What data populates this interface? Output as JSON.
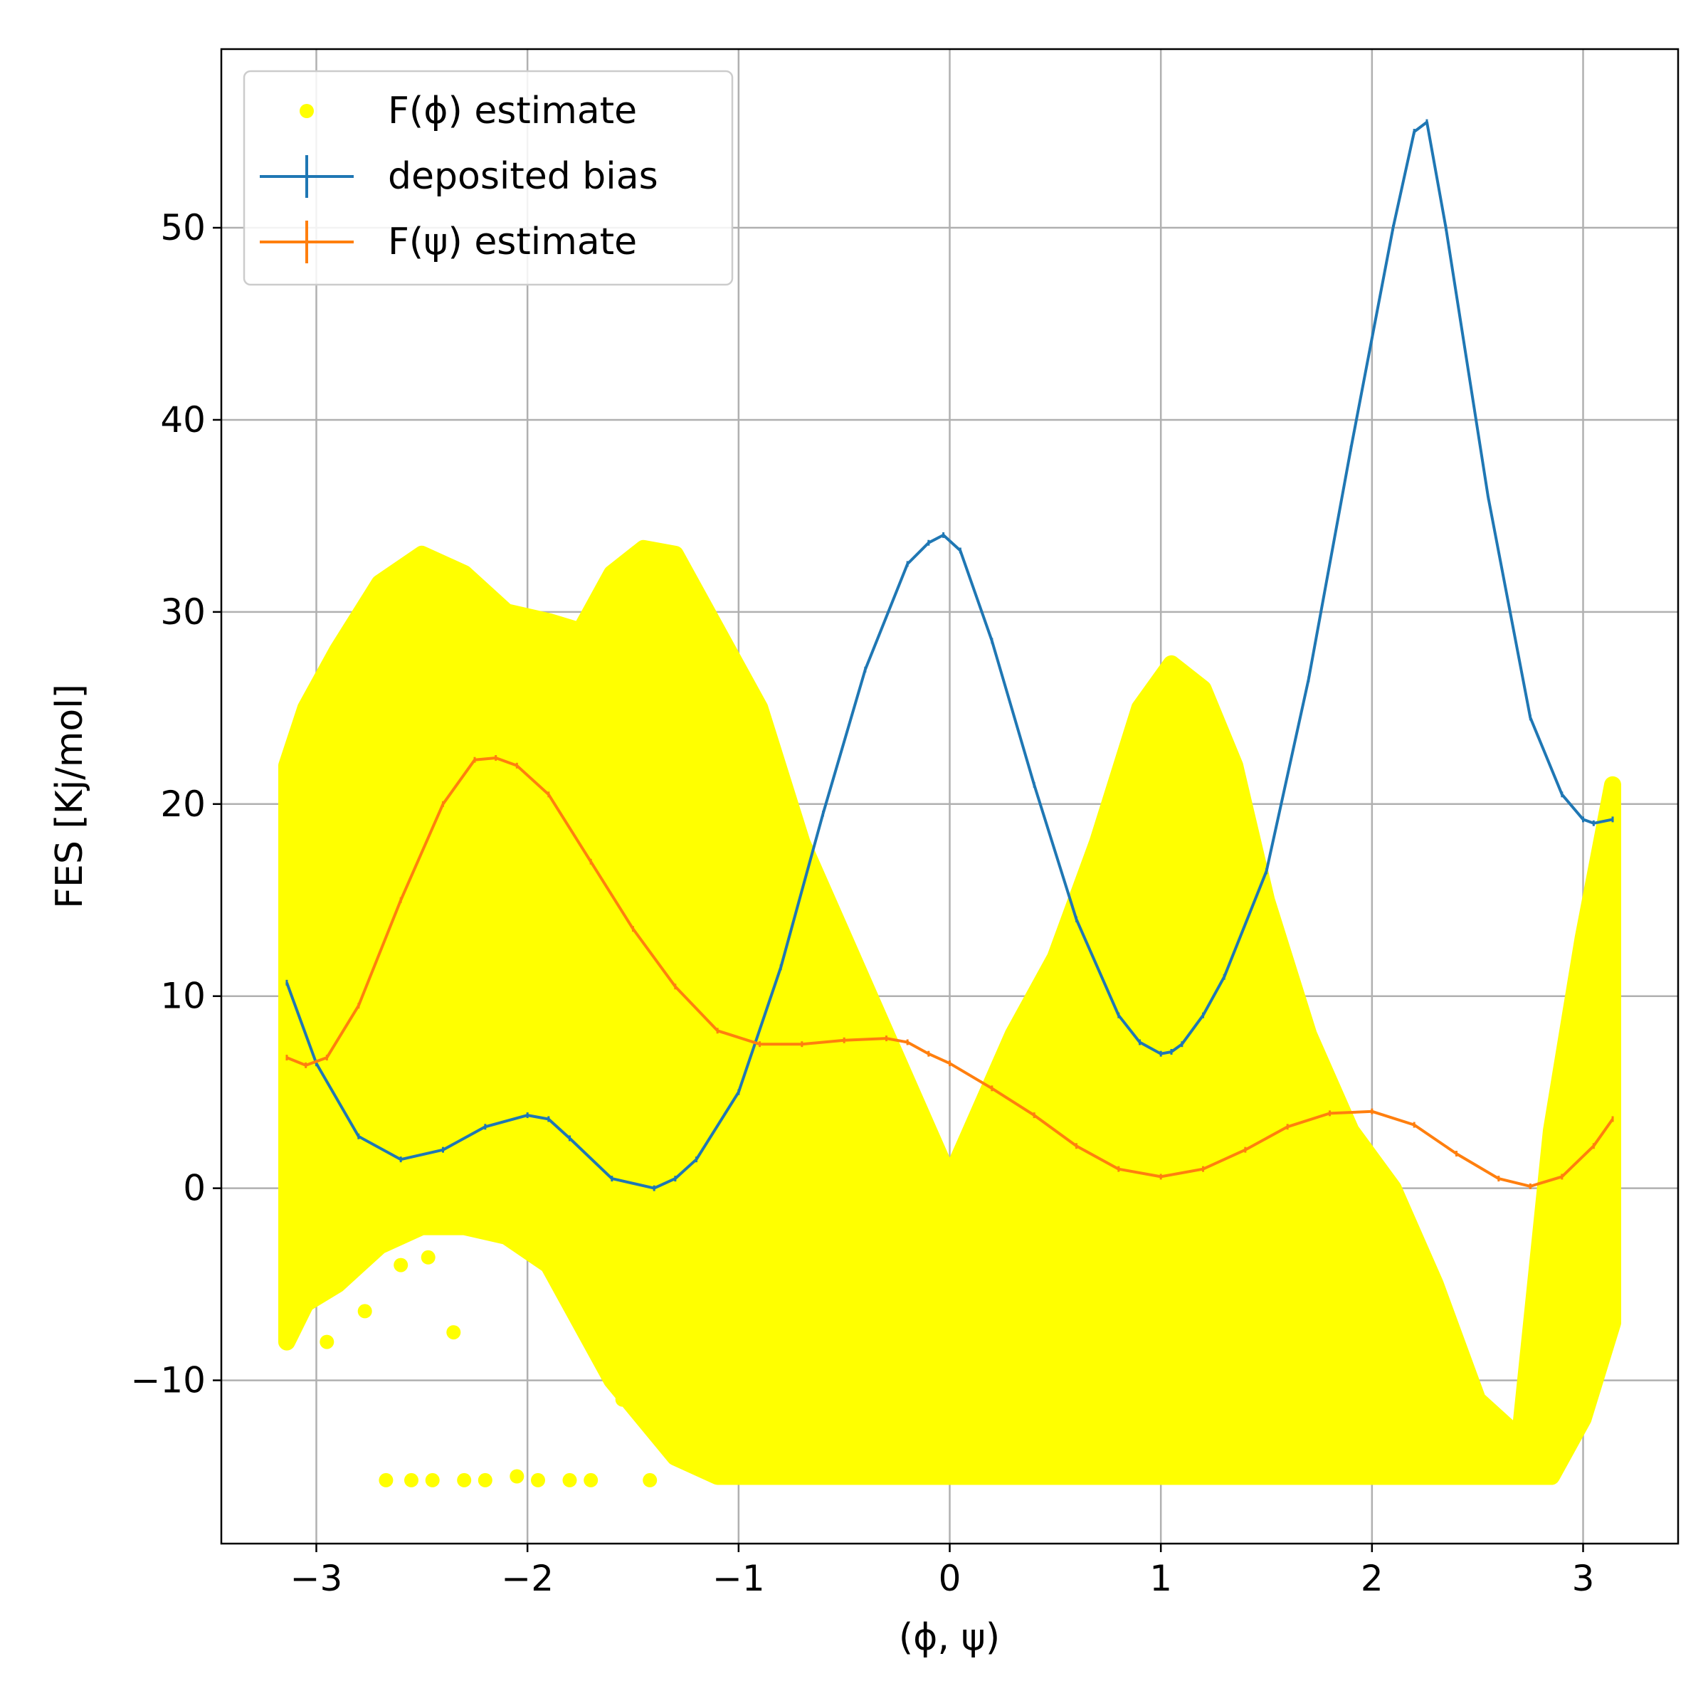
{
  "chart_data": {
    "type": "scatter+line",
    "title": "",
    "xlabel": "(ϕ, ψ)",
    "ylabel": "FES [Kj/mol]",
    "xlim": [
      -3.45,
      3.45
    ],
    "ylim": [
      -18.5,
      59.3
    ],
    "x_ticks": [
      -3,
      -2,
      -1,
      0,
      1,
      2,
      3
    ],
    "x_tick_labels": [
      "−3",
      "−2",
      "−1",
      "0",
      "1",
      "2",
      "3"
    ],
    "y_ticks": [
      -10,
      0,
      10,
      20,
      30,
      40,
      50
    ],
    "y_tick_labels": [
      "−10",
      "0",
      "10",
      "20",
      "30",
      "40",
      "50"
    ],
    "grid": true,
    "legend_position": "top-left",
    "colors": {
      "scatter": "#ffff00",
      "bias": "#1f77b4",
      "psi": "#ff7f0e"
    },
    "legend": [
      {
        "label": "F(ϕ) estimate",
        "kind": "scatter",
        "color": "#ffff00"
      },
      {
        "label": "deposited bias",
        "kind": "errorbar",
        "color": "#1f77b4"
      },
      {
        "label": "F(ψ) estimate",
        "kind": "errorbar",
        "color": "#ff7f0e"
      }
    ],
    "scatter_envelope": {
      "name": "F(ϕ) estimate",
      "x": [
        -3.14,
        -3.05,
        -2.9,
        -2.7,
        -2.5,
        -2.3,
        -2.1,
        -1.9,
        -1.75,
        -1.6,
        -1.45,
        -1.3,
        -1.1,
        -0.9,
        -0.7,
        -0.5,
        -0.3,
        -0.1,
        0.0,
        0.1,
        0.3,
        0.5,
        0.7,
        0.9,
        1.05,
        1.2,
        1.35,
        1.5,
        1.7,
        1.9,
        2.1,
        2.3,
        2.5,
        2.7,
        2.85,
        3.0,
        3.14
      ],
      "upper": [
        22,
        25,
        28,
        31.5,
        33,
        32,
        30,
        29.5,
        29,
        32,
        33.3,
        33,
        29,
        25,
        18,
        13,
        8,
        3,
        0.5,
        3,
        8,
        12,
        18,
        25,
        27.3,
        26,
        22,
        15,
        8,
        3,
        0,
        -5,
        -11,
        -13,
        3,
        13,
        21
      ],
      "lower": [
        -8,
        -6,
        -5,
        -3,
        -2,
        -2,
        -2.5,
        -4,
        -7,
        -10,
        -12,
        -14,
        -15,
        -15,
        -15,
        -15,
        -15,
        -15,
        -15,
        -15,
        -15,
        -15,
        -15,
        -15,
        -15,
        -15,
        -15,
        -15,
        -15,
        -15,
        -15,
        -15,
        -15,
        -15,
        -15,
        -12,
        -7
      ],
      "outliers_x": [
        -3.12,
        -3.0,
        -2.95,
        -2.77,
        -2.67,
        -2.6,
        -2.55,
        -2.47,
        -2.45,
        -2.35,
        -2.3,
        -2.2,
        -2.05,
        -1.95,
        -1.8,
        -1.7,
        -1.55,
        -1.42
      ],
      "outliers_y": [
        -7.7,
        -4.2,
        -8.0,
        -6.4,
        -15.2,
        -4.0,
        -15.2,
        -3.6,
        -15.2,
        -7.5,
        -15.2,
        -15.2,
        -15.0,
        -15.2,
        -15.2,
        -15.2,
        -11.0,
        -15.2
      ]
    },
    "series": [
      {
        "name": "deposited bias",
        "color": "#1f77b4",
        "x": [
          -3.14,
          -3.0,
          -2.8,
          -2.6,
          -2.4,
          -2.2,
          -2.0,
          -1.9,
          -1.8,
          -1.6,
          -1.4,
          -1.3,
          -1.2,
          -1.0,
          -0.8,
          -0.6,
          -0.4,
          -0.2,
          -0.1,
          -0.03,
          0.05,
          0.2,
          0.4,
          0.6,
          0.8,
          0.9,
          1.0,
          1.05,
          1.1,
          1.2,
          1.3,
          1.5,
          1.7,
          1.9,
          2.1,
          2.2,
          2.26,
          2.35,
          2.55,
          2.75,
          2.9,
          3.0,
          3.05,
          3.14
        ],
        "y": [
          10.7,
          6.5,
          2.7,
          1.5,
          2.0,
          3.2,
          3.8,
          3.6,
          2.6,
          0.5,
          0.0,
          0.5,
          1.5,
          5.0,
          11.5,
          19.5,
          27.0,
          32.5,
          33.6,
          34.0,
          33.2,
          28.5,
          21.0,
          14.0,
          9.0,
          7.6,
          7.0,
          7.1,
          7.5,
          9.0,
          11.0,
          16.5,
          26.5,
          38.5,
          50.0,
          55.0,
          55.5,
          50.0,
          36.0,
          24.5,
          20.5,
          19.2,
          19.0,
          19.2
        ]
      },
      {
        "name": "F(ψ) estimate",
        "color": "#ff7f0e",
        "x": [
          -3.14,
          -3.05,
          -2.95,
          -2.8,
          -2.6,
          -2.4,
          -2.25,
          -2.15,
          -2.05,
          -1.9,
          -1.7,
          -1.5,
          -1.3,
          -1.1,
          -0.9,
          -0.7,
          -0.5,
          -0.3,
          -0.2,
          -0.1,
          0.0,
          0.2,
          0.4,
          0.6,
          0.8,
          1.0,
          1.2,
          1.4,
          1.6,
          1.8,
          2.0,
          2.2,
          2.4,
          2.6,
          2.75,
          2.9,
          3.05,
          3.14
        ],
        "y": [
          6.8,
          6.4,
          6.8,
          9.5,
          15.0,
          20.0,
          22.3,
          22.4,
          22.0,
          20.5,
          17.0,
          13.5,
          10.5,
          8.2,
          7.5,
          7.5,
          7.7,
          7.8,
          7.6,
          7.0,
          6.5,
          5.2,
          3.8,
          2.2,
          1.0,
          0.6,
          1.0,
          2.0,
          3.2,
          3.9,
          4.0,
          3.3,
          1.8,
          0.5,
          0.1,
          0.6,
          2.2,
          3.6
        ]
      }
    ]
  }
}
